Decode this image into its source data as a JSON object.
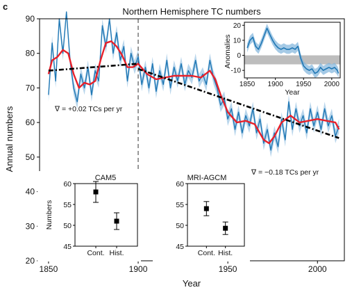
{
  "panel_label": "c",
  "colors": {
    "annual": "#1f77b4",
    "band": "#7fb4dc",
    "smooth": "#e8202a",
    "trend": "#000000",
    "anomaly_fill": "#bdbdbd"
  },
  "chart_data": [
    {
      "id": "main",
      "type": "line",
      "title": "Northern Hemisphere TC numbers",
      "xlabel": "Year",
      "ylabel": "Annual numbers",
      "xlim": [
        1845,
        2015
      ],
      "ylim": [
        20,
        90
      ],
      "xticks": [
        1850,
        1900,
        1950,
        2000
      ],
      "yticks": [
        20,
        30,
        40,
        50,
        60,
        70,
        80,
        90
      ],
      "reference_line_x": 1900,
      "annotations": [
        "∇ = +0.02 TCs per yr",
        "∇ = −0.18 TCs per yr"
      ],
      "trend_early": {
        "x": [
          1850,
          1900
        ],
        "y": [
          75,
          77
        ]
      },
      "trend_late": {
        "x": [
          1900,
          2012
        ],
        "y": [
          75.5,
          55.5
        ]
      },
      "smoothed": {
        "x": [
          1850,
          1852,
          1855,
          1858,
          1861,
          1864,
          1867,
          1870,
          1873,
          1876,
          1879,
          1882,
          1885,
          1888,
          1891,
          1894,
          1897,
          1900,
          1905,
          1910,
          1915,
          1920,
          1925,
          1930,
          1935,
          1940,
          1943,
          1946,
          1950,
          1955,
          1960,
          1965,
          1970,
          1973,
          1976,
          1980,
          1985,
          1990,
          1995,
          2000,
          2005,
          2010,
          2012
        ],
        "y": [
          74,
          78,
          79,
          81,
          80,
          74,
          70,
          71.5,
          71,
          72,
          78,
          83,
          83.5,
          82,
          79.5,
          76,
          76,
          77,
          74,
          72.5,
          73,
          73.5,
          73.5,
          73.5,
          73,
          75,
          72.5,
          68,
          63,
          60,
          60.5,
          59.5,
          55,
          54,
          56,
          60,
          62,
          60,
          60.5,
          61,
          60.5,
          60,
          58
        ]
      },
      "annual": {
        "x": [
          1850,
          1852,
          1854,
          1856,
          1858,
          1860,
          1862,
          1864,
          1866,
          1868,
          1870,
          1872,
          1874,
          1876,
          1878,
          1880,
          1882,
          1884,
          1886,
          1888,
          1890,
          1892,
          1894,
          1896,
          1898,
          1900,
          1902,
          1904,
          1906,
          1908,
          1910,
          1912,
          1914,
          1916,
          1918,
          1920,
          1922,
          1924,
          1926,
          1928,
          1930,
          1932,
          1934,
          1936,
          1938,
          1940,
          1942,
          1944,
          1946,
          1948,
          1950,
          1952,
          1954,
          1956,
          1958,
          1960,
          1962,
          1964,
          1966,
          1968,
          1970,
          1972,
          1974,
          1976,
          1978,
          1980,
          1982,
          1984,
          1986,
          1988,
          1990,
          1992,
          1994,
          1996,
          1998,
          2000,
          2002,
          2004,
          2006,
          2008,
          2010,
          2012
        ],
        "y": [
          68,
          83,
          72,
          90,
          80,
          92,
          78,
          70,
          66,
          74,
          70,
          76,
          68,
          75,
          72,
          88,
          82,
          90,
          80,
          86,
          78,
          82,
          72,
          80,
          76,
          79,
          71,
          76,
          70,
          77,
          69,
          75,
          71,
          78,
          70,
          76,
          72,
          77,
          71,
          75,
          73,
          78,
          72,
          74,
          71,
          78,
          73,
          70,
          65,
          67,
          61,
          64,
          58,
          63,
          57,
          62,
          59,
          64,
          57,
          61,
          54,
          58,
          52,
          57,
          53,
          61,
          55,
          66,
          58,
          64,
          59,
          62,
          57,
          64,
          59,
          63,
          58,
          64,
          59,
          62,
          56,
          59
        ]
      }
    },
    {
      "id": "anomalies",
      "type": "area",
      "xlabel": "Year",
      "ylabel": "Anomalies",
      "xlim": [
        1845,
        2015
      ],
      "ylim": [
        -15,
        22
      ],
      "xticks": [
        1850,
        1900,
        1950,
        2000
      ],
      "yticks": [
        -10,
        0,
        10,
        20
      ],
      "fill_range_y": [
        -6,
        0
      ],
      "series": {
        "x": [
          1850,
          1855,
          1860,
          1865,
          1870,
          1875,
          1880,
          1885,
          1890,
          1895,
          1900,
          1905,
          1910,
          1915,
          1920,
          1925,
          1930,
          1935,
          1940,
          1945,
          1950,
          1955,
          1960,
          1965,
          1970,
          1975,
          1980,
          1985,
          1990,
          1995,
          2000,
          2005,
          2010,
          2012
        ],
        "y": [
          5,
          10,
          12,
          6,
          4,
          8,
          13,
          18,
          14,
          10,
          7,
          5,
          4,
          5,
          4,
          4,
          5,
          4,
          6,
          -2,
          -7,
          -9,
          -10,
          -9,
          -12,
          -11,
          -8,
          -10,
          -9,
          -8,
          -9,
          -8,
          -10,
          -12
        ]
      }
    },
    {
      "id": "cam5",
      "type": "scatter",
      "title": "CAM5",
      "ylabel": "Numbers",
      "categories": [
        "Cont.",
        "Hist."
      ],
      "values": [
        58,
        51
      ],
      "error": [
        2.5,
        2
      ],
      "ylim": [
        45,
        60
      ],
      "yticks": [
        45,
        50,
        55,
        60
      ]
    },
    {
      "id": "mri",
      "type": "scatter",
      "title": "MRI-AGCM",
      "ylabel": "",
      "categories": [
        "Cont.",
        "Hist."
      ],
      "values": [
        54,
        49.3
      ],
      "error": [
        1.7,
        1.5
      ],
      "ylim": [
        45,
        60
      ],
      "yticks": [
        45,
        50,
        55,
        60
      ]
    }
  ]
}
